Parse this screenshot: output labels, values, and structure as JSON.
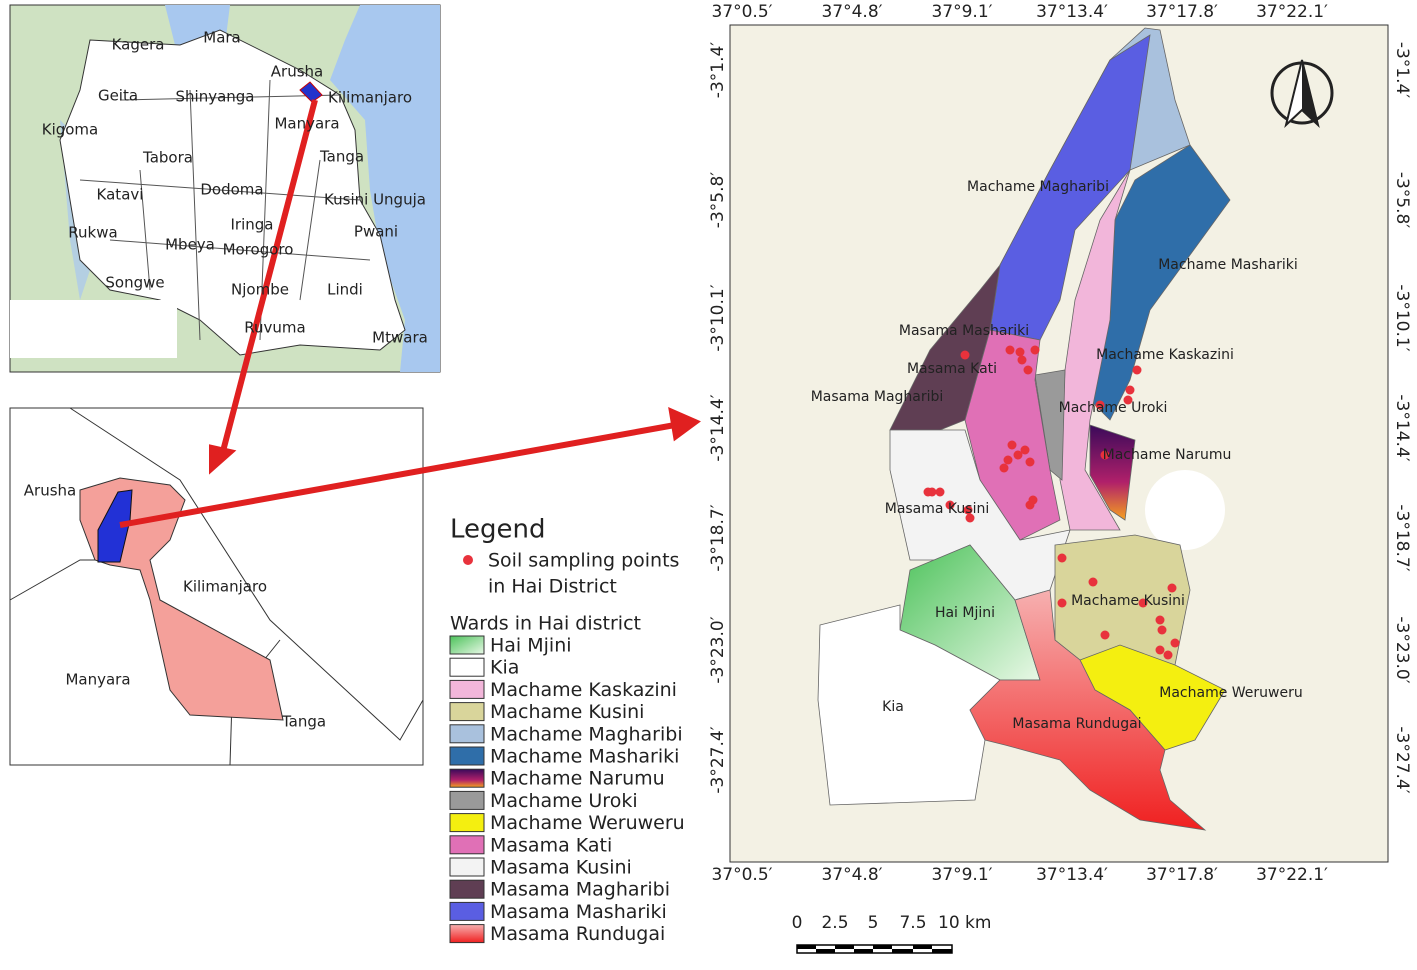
{
  "overview_map": {
    "labels": [
      "Kagera",
      "Mara",
      "Geita",
      "Shinyanga",
      "Arusha",
      "Kilimanjaro",
      "Kigoma",
      "Tabora",
      "Manyara",
      "Tanga",
      "Katavi",
      "Dodoma",
      "Kusini Unguja",
      "Rukwa",
      "Iringa",
      "Morogoro",
      "Pwani",
      "Mbeya",
      "Songwe",
      "Njombe",
      "Lindi",
      "Ruvuma",
      "Mtwara"
    ]
  },
  "region_map": {
    "labels": [
      "Arusha",
      "Kilimanjaro",
      "Manyara",
      "Tanga"
    ]
  },
  "ward_map": {
    "lon_labels": [
      "37°0.5′",
      "37°4.8′",
      "37°9.1′",
      "37°13.4′",
      "37°17.8′",
      "37°22.1′"
    ],
    "lat_labels": [
      "-3°1.4′",
      "-3°5.8′",
      "-3°10.1′",
      "-3°14.4′",
      "-3°18.7′",
      "-3°23.0′",
      "-3°27.4′"
    ],
    "ward_labels": [
      "Machame Magharibi",
      "Machame Mashariki",
      "Masama Mashariki",
      "Machame Kaskazini",
      "Masama Kati",
      "Masama Magharibi",
      "Machame Uroki",
      "Machame Narumu",
      "Masama Kusini",
      "Machame Kusini",
      "Hai Mjini",
      "Kia",
      "Machame Weruweru",
      "Masama Rundugai"
    ]
  },
  "scale_bar": {
    "labels": [
      "0",
      "2.5",
      "5",
      "7.5",
      "10 km"
    ]
  },
  "legend": {
    "title": "Legend",
    "points_label": [
      "Soil sampling points",
      "in Hai District"
    ],
    "points_color": "#e8323c",
    "wards_title": "Wards in Hai district",
    "wards": [
      {
        "name": "Hai Mjini",
        "color": "#7ed67a"
      },
      {
        "name": "Kia",
        "color": "#ffffff"
      },
      {
        "name": "Machame Kaskazini",
        "color": "#f2b6da"
      },
      {
        "name": "Machame Kusini",
        "color": "#d9d59b"
      },
      {
        "name": "Machame Magharibi",
        "color": "#a9c1dd"
      },
      {
        "name": "Machame Mashariki",
        "color": "#2f6ea9"
      },
      {
        "name": "Machame Narumu",
        "color": "#6b1b6e"
      },
      {
        "name": "Machame Uroki",
        "color": "#9a9a9a"
      },
      {
        "name": "Machame Weruweru",
        "color": "#f4ef10"
      },
      {
        "name": "Masama Kati",
        "color": "#e070b6"
      },
      {
        "name": "Masama Kusini",
        "color": "#f3f3f3"
      },
      {
        "name": "Masama Magharibi",
        "color": "#5f3e53"
      },
      {
        "name": "Masama Mashariki",
        "color": "#5a5ee2"
      },
      {
        "name": "Masama Rundugai",
        "color": "#f0484a"
      }
    ]
  }
}
